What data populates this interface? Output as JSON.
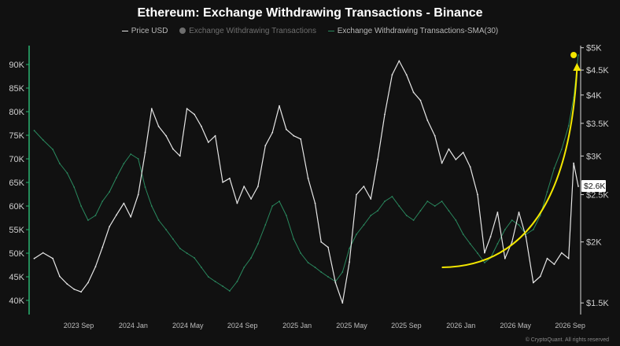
{
  "chart_data": {
    "type": "line",
    "title": "Ethereum: Exchange Withdrawing Transactions - Binance",
    "legend": {
      "placement": "top-center",
      "items": [
        {
          "label": "Price USD",
          "style": "line"
        },
        {
          "label": "Exchange Withdrawing Transactions",
          "style": "dot"
        },
        {
          "label": "Exchange Withdrawing Transactions-SMA(30)",
          "style": "line"
        }
      ]
    },
    "x_ticks": [
      "2023 Sep",
      "2024 Jan",
      "2024 May",
      "2024 Sep",
      "2025 Jan",
      "2025 May",
      "2025 Sep",
      "2026 Jan",
      "2026 May",
      "2026 Sep"
    ],
    "left_axis": {
      "ylim": [
        37000,
        94000
      ],
      "ticks": [
        {
          "label": "90K",
          "value": 90000
        },
        {
          "label": "85K",
          "value": 85000
        },
        {
          "label": "80K",
          "value": 80000
        },
        {
          "label": "75K",
          "value": 75000
        },
        {
          "label": "70K",
          "value": 70000
        },
        {
          "label": "65K",
          "value": 65000
        },
        {
          "label": "60K",
          "value": 60000
        },
        {
          "label": "55K",
          "value": 55000
        },
        {
          "label": "50K",
          "value": 50000
        },
        {
          "label": "45K",
          "value": 45000
        },
        {
          "label": "40K",
          "value": 40000
        }
      ]
    },
    "right_axis": {
      "scale": "log",
      "ylim": [
        1420,
        5050
      ],
      "ticks": [
        {
          "label": "$5K",
          "value": 5000
        },
        {
          "label": "$4.5K",
          "value": 4500
        },
        {
          "label": "$4K",
          "value": 4000
        },
        {
          "label": "$3.5K",
          "value": 3500
        },
        {
          "label": "$3K",
          "value": 3000
        },
        {
          "label": "$2.5K",
          "value": 2500
        },
        {
          "label": "$2K",
          "value": 2000
        },
        {
          "label": "$1.5K",
          "value": 1500
        }
      ],
      "current_value_label": "$2.6K",
      "current_value": 2600
    },
    "grid": false,
    "series": [
      {
        "name": "Price USD",
        "color": "#e6e6e6",
        "axis": "right",
        "x": [
          "2023-07-01",
          "2023-07-20",
          "2023-08-10",
          "2023-08-25",
          "2023-09-10",
          "2023-09-25",
          "2023-10-10",
          "2023-10-25",
          "2023-11-10",
          "2023-11-25",
          "2023-12-10",
          "2023-12-25",
          "2024-01-10",
          "2024-01-25",
          "2024-02-10",
          "2024-02-25",
          "2024-03-10",
          "2024-03-25",
          "2024-04-10",
          "2024-04-25",
          "2024-05-10",
          "2024-05-25",
          "2024-06-10",
          "2024-06-25",
          "2024-07-10",
          "2024-07-25",
          "2024-08-10",
          "2024-08-25",
          "2024-09-10",
          "2024-09-25",
          "2024-10-10",
          "2024-10-25",
          "2024-11-10",
          "2024-11-25",
          "2024-12-10",
          "2024-12-25",
          "2025-01-10",
          "2025-01-25",
          "2025-02-10",
          "2025-02-25",
          "2025-03-10",
          "2025-03-25",
          "2025-04-10",
          "2025-04-25",
          "2025-05-10",
          "2025-05-25",
          "2025-06-10",
          "2025-06-25",
          "2025-07-10",
          "2025-07-25",
          "2025-08-10",
          "2025-08-25",
          "2025-09-10",
          "2025-09-25",
          "2025-10-10",
          "2025-10-25",
          "2025-11-10",
          "2025-11-25",
          "2025-12-10",
          "2025-12-25",
          "2026-01-10",
          "2026-01-25",
          "2026-02-10",
          "2026-02-25",
          "2026-03-10",
          "2026-03-25",
          "2026-04-10",
          "2026-04-25",
          "2026-05-10",
          "2026-05-25",
          "2026-06-10",
          "2026-06-25",
          "2026-07-10",
          "2026-07-25",
          "2026-08-10",
          "2026-08-25",
          "2026-09-05",
          "2026-09-15"
        ],
        "values": [
          1850,
          1900,
          1850,
          1700,
          1640,
          1600,
          1580,
          1650,
          1780,
          1950,
          2150,
          2270,
          2400,
          2250,
          2500,
          3050,
          3750,
          3450,
          3300,
          3100,
          3000,
          3750,
          3650,
          3450,
          3200,
          3300,
          2650,
          2700,
          2400,
          2600,
          2450,
          2600,
          3150,
          3350,
          3800,
          3400,
          3300,
          3250,
          2700,
          2400,
          2000,
          1950,
          1650,
          1500,
          1820,
          2500,
          2600,
          2450,
          2950,
          3650,
          4400,
          4700,
          4400,
          4050,
          3900,
          3550,
          3300,
          2900,
          3100,
          2950,
          3050,
          2850,
          2500,
          1900,
          2050,
          2300,
          1850,
          2000,
          2300,
          2050,
          1650,
          1700,
          1850,
          1800,
          1900,
          1850,
          2900,
          2600
        ]
      },
      {
        "name": "Exchange Withdrawing Transactions-SMA(30)",
        "color": "#2a8a5f",
        "axis": "left",
        "x": [
          "2023-07-01",
          "2023-07-20",
          "2023-08-10",
          "2023-08-25",
          "2023-09-10",
          "2023-09-25",
          "2023-10-10",
          "2023-10-25",
          "2023-11-10",
          "2023-11-25",
          "2023-12-10",
          "2023-12-25",
          "2024-01-10",
          "2024-01-25",
          "2024-02-10",
          "2024-02-25",
          "2024-03-10",
          "2024-03-25",
          "2024-04-10",
          "2024-04-25",
          "2024-05-10",
          "2024-05-25",
          "2024-06-10",
          "2024-06-25",
          "2024-07-10",
          "2024-07-25",
          "2024-08-10",
          "2024-08-25",
          "2024-09-10",
          "2024-09-25",
          "2024-10-10",
          "2024-10-25",
          "2024-11-10",
          "2024-11-25",
          "2024-12-10",
          "2024-12-25",
          "2025-01-10",
          "2025-01-25",
          "2025-02-10",
          "2025-02-25",
          "2025-03-10",
          "2025-03-25",
          "2025-04-10",
          "2025-04-25",
          "2025-05-10",
          "2025-05-25",
          "2025-06-10",
          "2025-06-25",
          "2025-07-10",
          "2025-07-25",
          "2025-08-10",
          "2025-08-25",
          "2025-09-10",
          "2025-09-25",
          "2025-10-10",
          "2025-10-25",
          "2025-11-10",
          "2025-11-25",
          "2025-12-10",
          "2025-12-25",
          "2026-01-10",
          "2026-01-25",
          "2026-02-10",
          "2026-02-25",
          "2026-03-10",
          "2026-03-25",
          "2026-04-10",
          "2026-04-25",
          "2026-05-10",
          "2026-05-25",
          "2026-06-10",
          "2026-06-25",
          "2026-07-10",
          "2026-07-25",
          "2026-08-10",
          "2026-08-25",
          "2026-09-05",
          "2026-09-15"
        ],
        "values": [
          76000,
          74000,
          72000,
          69000,
          67000,
          64000,
          60000,
          57000,
          58000,
          61000,
          63000,
          66000,
          69000,
          71000,
          70000,
          64000,
          60000,
          57000,
          55000,
          53000,
          51000,
          50000,
          49000,
          47000,
          45000,
          44000,
          43000,
          42000,
          44000,
          47000,
          49000,
          52000,
          56000,
          60000,
          61000,
          58000,
          53000,
          50000,
          48000,
          47000,
          46000,
          45000,
          44000,
          46000,
          51000,
          54000,
          56000,
          58000,
          59000,
          61000,
          62000,
          60000,
          58000,
          57000,
          59000,
          61000,
          60000,
          61000,
          59000,
          57000,
          54000,
          52000,
          50000,
          48000,
          49000,
          52000,
          55000,
          57000,
          56000,
          54000,
          55000,
          58000,
          63000,
          68000,
          72000,
          77000,
          83000,
          92000
        ]
      }
    ],
    "annotations": [
      {
        "type": "arrow",
        "color": "#f2e600",
        "x_start": "2025-11-25",
        "y_start": 47000,
        "x_end": "2026-09-12",
        "y_end": 90000
      },
      {
        "type": "dot",
        "color": "#f2e600",
        "x": "2026-09-05",
        "y": 92000
      }
    ]
  },
  "footer": {
    "credit": "© CryptoQuant. All rights reserved"
  }
}
